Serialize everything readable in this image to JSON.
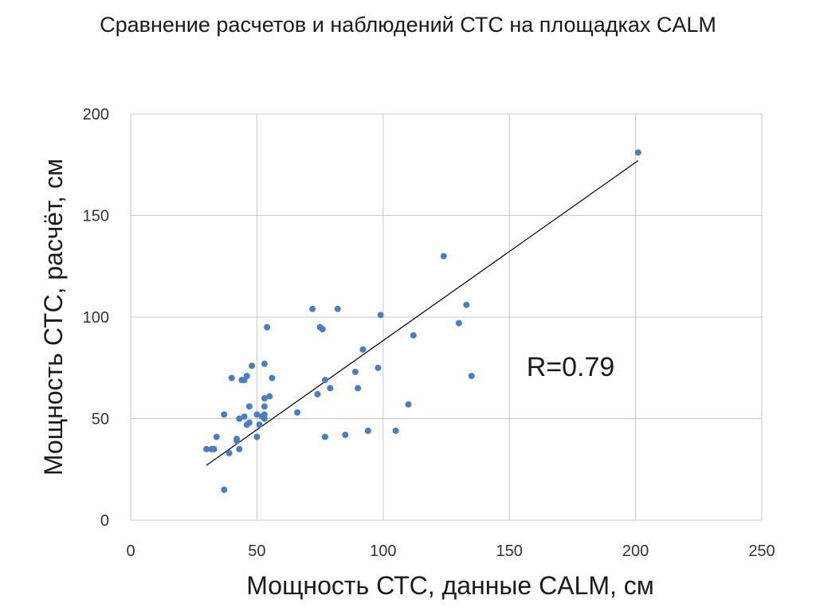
{
  "chart_data": {
    "type": "scatter",
    "title": "Сравнение расчетов и наблюдений СТС на площадках CALM",
    "xlabel": "Мощность СТС, данные  CALM, см",
    "ylabel": "Мощность СТС, расчёт, см",
    "xlim": [
      0,
      250
    ],
    "ylim": [
      0,
      200
    ],
    "x_ticks": [
      0,
      50,
      100,
      150,
      200,
      250
    ],
    "y_ticks": [
      0,
      50,
      100,
      150,
      200
    ],
    "x_tick_labels": [
      "0",
      "50",
      "100",
      "150",
      "200",
      "250"
    ],
    "y_tick_labels": [
      "0",
      "50",
      "100",
      "150",
      "200"
    ],
    "grid": true,
    "point_color": "#4a7ebf",
    "line_color": "#000000",
    "annotation": "R=0.79",
    "points": [
      {
        "x": 30,
        "y": 35
      },
      {
        "x": 32,
        "y": 35
      },
      {
        "x": 33,
        "y": 35
      },
      {
        "x": 34,
        "y": 41
      },
      {
        "x": 37,
        "y": 15
      },
      {
        "x": 37,
        "y": 52
      },
      {
        "x": 39,
        "y": 33
      },
      {
        "x": 40,
        "y": 70
      },
      {
        "x": 42,
        "y": 39
      },
      {
        "x": 42,
        "y": 40
      },
      {
        "x": 43,
        "y": 50
      },
      {
        "x": 43,
        "y": 35
      },
      {
        "x": 44,
        "y": 69
      },
      {
        "x": 45,
        "y": 69
      },
      {
        "x": 45,
        "y": 51
      },
      {
        "x": 46,
        "y": 71
      },
      {
        "x": 46,
        "y": 47
      },
      {
        "x": 47,
        "y": 48
      },
      {
        "x": 47,
        "y": 56
      },
      {
        "x": 48,
        "y": 76
      },
      {
        "x": 50,
        "y": 41
      },
      {
        "x": 50,
        "y": 52
      },
      {
        "x": 51,
        "y": 47
      },
      {
        "x": 52,
        "y": 51
      },
      {
        "x": 53,
        "y": 50
      },
      {
        "x": 53,
        "y": 52
      },
      {
        "x": 53,
        "y": 60
      },
      {
        "x": 53,
        "y": 56
      },
      {
        "x": 53,
        "y": 77
      },
      {
        "x": 54,
        "y": 95
      },
      {
        "x": 55,
        "y": 61
      },
      {
        "x": 56,
        "y": 70
      },
      {
        "x": 66,
        "y": 53
      },
      {
        "x": 72,
        "y": 104
      },
      {
        "x": 74,
        "y": 62
      },
      {
        "x": 75,
        "y": 95
      },
      {
        "x": 76,
        "y": 94
      },
      {
        "x": 77,
        "y": 69
      },
      {
        "x": 77,
        "y": 41
      },
      {
        "x": 79,
        "y": 65
      },
      {
        "x": 82,
        "y": 104
      },
      {
        "x": 85,
        "y": 42
      },
      {
        "x": 89,
        "y": 73
      },
      {
        "x": 90,
        "y": 65
      },
      {
        "x": 92,
        "y": 84
      },
      {
        "x": 94,
        "y": 44
      },
      {
        "x": 98,
        "y": 75
      },
      {
        "x": 99,
        "y": 101
      },
      {
        "x": 105,
        "y": 44
      },
      {
        "x": 110,
        "y": 57
      },
      {
        "x": 112,
        "y": 91
      },
      {
        "x": 124,
        "y": 130
      },
      {
        "x": 130,
        "y": 97
      },
      {
        "x": 133,
        "y": 106
      },
      {
        "x": 135,
        "y": 71
      },
      {
        "x": 201,
        "y": 181
      }
    ],
    "trendline": {
      "x": [
        30,
        201
      ],
      "y": [
        27,
        177
      ]
    }
  }
}
